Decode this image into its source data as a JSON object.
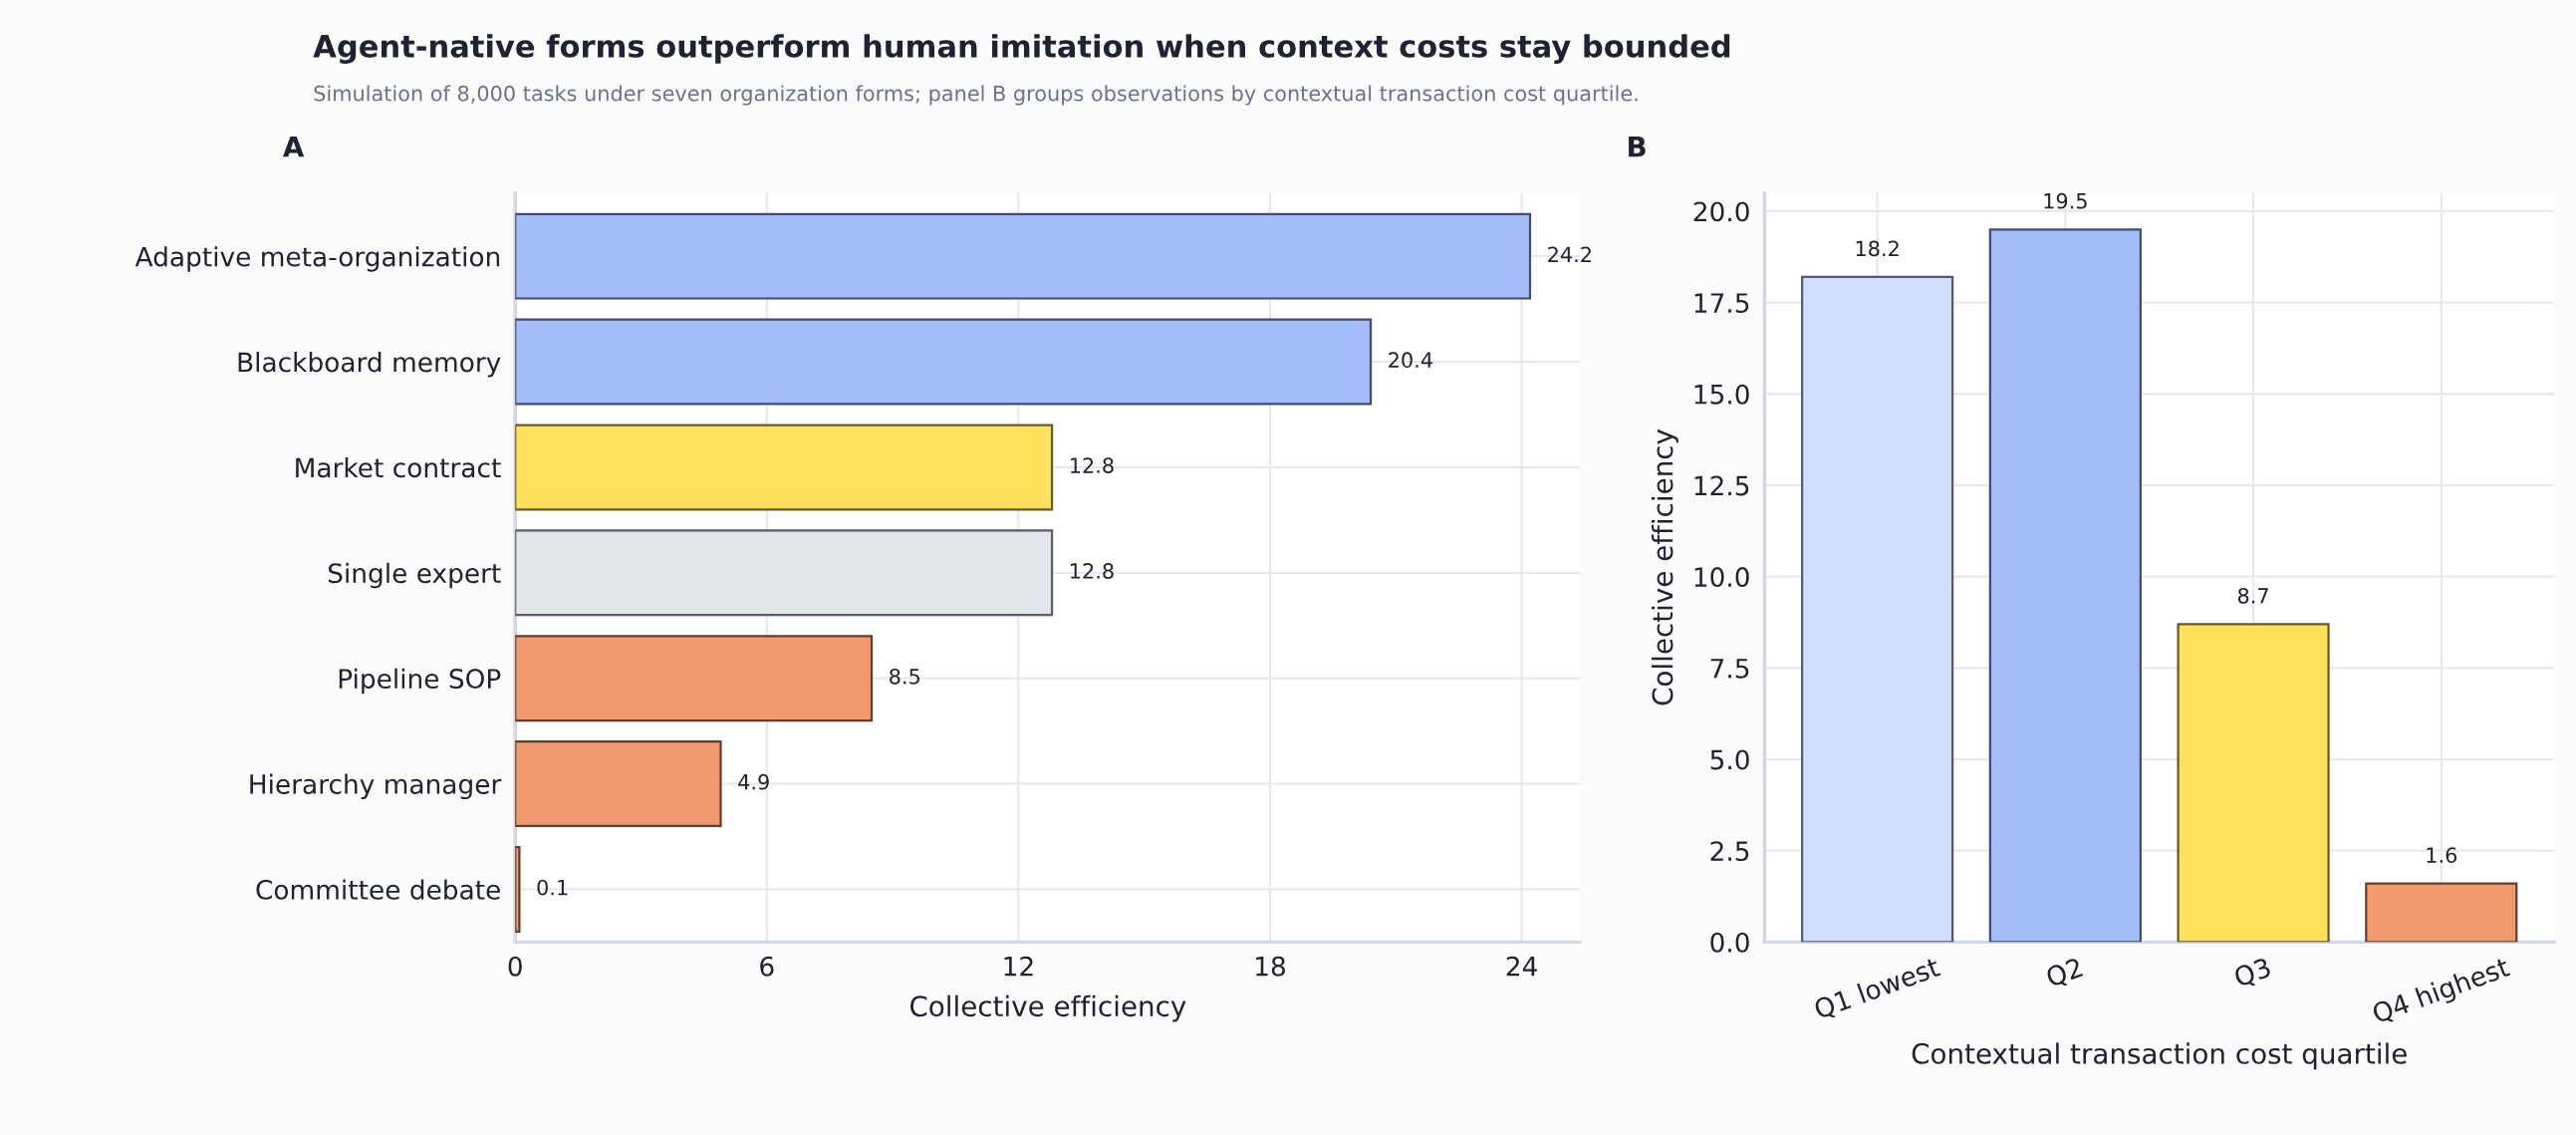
{
  "chart_data": [
    {
      "type": "bar",
      "orientation": "horizontal",
      "title": "Agent-native forms outperform human imitation when context costs stay bounded",
      "subtitle": "Simulation of 8,000 tasks under seven organization forms; panel B groups observations by contextual transaction cost quartile.",
      "annotations": [
        "A"
      ],
      "xlabel": "Collective efficiency",
      "categories": [
        "Adaptive meta-organization",
        "Blackboard memory",
        "Market contract",
        "Single expert",
        "Pipeline SOP",
        "Hierarchy manager",
        "Committee debate"
      ],
      "values": [
        24.2,
        20.4,
        12.8,
        12.8,
        8.5,
        4.9,
        0.1
      ],
      "colors": [
        "#a4bdf9",
        "#a4bdf9",
        "#ffe15e",
        "#e2e5ea",
        "#f09a6e",
        "#f09a6e",
        "#f09a6e"
      ],
      "xlim": [
        0,
        25.4
      ],
      "xticks": [
        0,
        6,
        12,
        18,
        24
      ],
      "grid": true,
      "data_labels": true
    },
    {
      "type": "bar",
      "annotations": [
        "B"
      ],
      "xlabel": "Contextual transaction cost quartile",
      "ylabel": "Collective efficiency",
      "categories": [
        "Q1 lowest",
        "Q2",
        "Q3",
        "Q4 highest"
      ],
      "values": [
        18.2,
        19.5,
        8.7,
        1.6
      ],
      "colors": [
        "#cfdefd",
        "#a4bdf9",
        "#ffe15e",
        "#f09a6e"
      ],
      "ylim": [
        0,
        20.5
      ],
      "yticks": [
        {
          "value": 0,
          "label": "0.0"
        },
        {
          "value": 2.5,
          "label": "2.5"
        },
        {
          "value": 5,
          "label": "5.0"
        },
        {
          "value": 7.5,
          "label": "7.5"
        },
        {
          "value": 10,
          "label": "10.0"
        },
        {
          "value": 12.5,
          "label": "12.5"
        },
        {
          "value": 15,
          "label": "15.0"
        },
        {
          "value": 17.5,
          "label": "17.5"
        },
        {
          "value": 20,
          "label": "20.0"
        }
      ],
      "grid": true,
      "data_labels": true
    }
  ]
}
